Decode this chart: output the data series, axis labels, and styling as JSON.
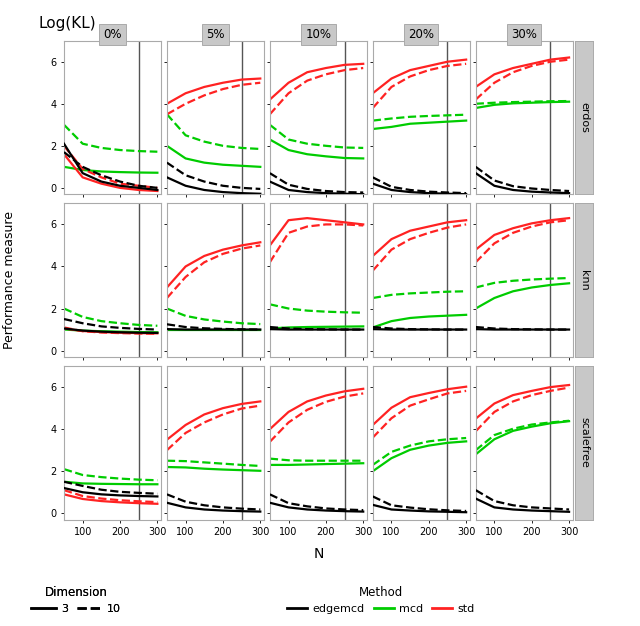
{
  "title": "Log(KL)",
  "xlabel": "N",
  "ylabel": "Performance measure",
  "col_labels": [
    "0%",
    "5%",
    "10%",
    "20%",
    "30%"
  ],
  "row_labels": [
    "erdos",
    "knn",
    "scalefree"
  ],
  "n_values": [
    50,
    100,
    150,
    200,
    250,
    300
  ],
  "vline_x": 250,
  "colors": {
    "edgemcd": "#000000",
    "mcd": "#00cc00",
    "std": "#ff2222"
  },
  "lw_solid": 1.6,
  "lw_dashed": 1.6,
  "ylim": [
    -0.3,
    7.0
  ],
  "yticks": [
    0,
    2,
    4,
    6
  ],
  "xticks": [
    100,
    200,
    300
  ],
  "data": {
    "erdos": {
      "0%": {
        "edgemcd_3": [
          2.1,
          0.7,
          0.3,
          0.1,
          0.0,
          -0.1
        ],
        "edgemcd_10": [
          1.7,
          1.0,
          0.6,
          0.3,
          0.1,
          0.0
        ],
        "mcd_3": [
          1.0,
          0.85,
          0.78,
          0.75,
          0.73,
          0.72
        ],
        "mcd_10": [
          3.0,
          2.1,
          1.9,
          1.8,
          1.75,
          1.72
        ],
        "std_3": [
          1.6,
          0.5,
          0.2,
          0.0,
          -0.1,
          -0.15
        ],
        "std_10": [
          2.0,
          0.9,
          0.5,
          0.2,
          0.1,
          0.0
        ]
      },
      "5%": {
        "edgemcd_3": [
          0.5,
          0.1,
          -0.1,
          -0.2,
          -0.25,
          -0.28
        ],
        "edgemcd_10": [
          1.2,
          0.6,
          0.3,
          0.1,
          0.0,
          -0.05
        ],
        "mcd_3": [
          2.0,
          1.4,
          1.2,
          1.1,
          1.05,
          1.0
        ],
        "mcd_10": [
          3.5,
          2.5,
          2.2,
          2.0,
          1.9,
          1.85
        ],
        "std_3": [
          4.0,
          4.5,
          4.8,
          5.0,
          5.15,
          5.2
        ],
        "std_10": [
          3.5,
          4.0,
          4.4,
          4.7,
          4.9,
          5.0
        ]
      },
      "10%": {
        "edgemcd_3": [
          0.3,
          -0.1,
          -0.2,
          -0.25,
          -0.28,
          -0.3
        ],
        "edgemcd_10": [
          0.7,
          0.15,
          -0.05,
          -0.15,
          -0.2,
          -0.22
        ],
        "mcd_3": [
          2.3,
          1.8,
          1.6,
          1.5,
          1.42,
          1.4
        ],
        "mcd_10": [
          3.0,
          2.3,
          2.1,
          2.0,
          1.92,
          1.9
        ],
        "std_3": [
          4.2,
          5.0,
          5.5,
          5.7,
          5.85,
          5.9
        ],
        "std_10": [
          3.5,
          4.5,
          5.1,
          5.4,
          5.6,
          5.7
        ]
      },
      "20%": {
        "edgemcd_3": [
          0.2,
          -0.1,
          -0.2,
          -0.25,
          -0.28,
          -0.3
        ],
        "edgemcd_10": [
          0.5,
          0.05,
          -0.1,
          -0.18,
          -0.22,
          -0.25
        ],
        "mcd_3": [
          2.8,
          2.9,
          3.05,
          3.1,
          3.15,
          3.2
        ],
        "mcd_10": [
          3.2,
          3.3,
          3.38,
          3.42,
          3.45,
          3.48
        ],
        "std_3": [
          4.5,
          5.2,
          5.6,
          5.8,
          6.0,
          6.1
        ],
        "std_10": [
          3.8,
          4.8,
          5.3,
          5.6,
          5.8,
          5.9
        ]
      },
      "30%": {
        "edgemcd_3": [
          0.7,
          0.1,
          -0.1,
          -0.18,
          -0.22,
          -0.25
        ],
        "edgemcd_10": [
          1.0,
          0.35,
          0.08,
          -0.03,
          -0.1,
          -0.15
        ],
        "mcd_3": [
          3.8,
          3.95,
          4.02,
          4.05,
          4.08,
          4.1
        ],
        "mcd_10": [
          4.0,
          4.05,
          4.08,
          4.1,
          4.12,
          4.13
        ],
        "std_3": [
          4.8,
          5.4,
          5.7,
          5.9,
          6.1,
          6.2
        ],
        "std_10": [
          4.2,
          5.0,
          5.5,
          5.8,
          6.0,
          6.1
        ]
      }
    },
    "knn": {
      "0%": {
        "edgemcd_3": [
          1.05,
          0.95,
          0.9,
          0.87,
          0.85,
          0.84
        ],
        "edgemcd_10": [
          1.5,
          1.3,
          1.15,
          1.08,
          1.03,
          1.0
        ],
        "mcd_3": [
          1.0,
          0.95,
          0.92,
          0.9,
          0.88,
          0.87
        ],
        "mcd_10": [
          2.0,
          1.6,
          1.4,
          1.3,
          1.22,
          1.18
        ],
        "std_3": [
          1.05,
          0.93,
          0.88,
          0.85,
          0.83,
          0.82
        ],
        "std_10": [
          1.1,
          0.92,
          0.86,
          0.83,
          0.81,
          0.8
        ]
      },
      "5%": {
        "edgemcd_3": [
          1.02,
          1.0,
          1.0,
          1.0,
          1.0,
          1.0
        ],
        "edgemcd_10": [
          1.25,
          1.12,
          1.06,
          1.03,
          1.01,
          1.0
        ],
        "mcd_3": [
          1.0,
          1.0,
          1.0,
          1.0,
          1.0,
          1.0
        ],
        "mcd_10": [
          2.0,
          1.65,
          1.48,
          1.38,
          1.3,
          1.26
        ],
        "std_3": [
          3.0,
          4.0,
          4.5,
          4.8,
          5.0,
          5.15
        ],
        "std_10": [
          2.5,
          3.5,
          4.2,
          4.6,
          4.85,
          5.0
        ]
      },
      "10%": {
        "edgemcd_3": [
          1.02,
          1.0,
          1.0,
          1.0,
          1.0,
          1.0
        ],
        "edgemcd_10": [
          1.12,
          1.05,
          1.02,
          1.01,
          1.0,
          1.0
        ],
        "mcd_3": [
          1.05,
          1.1,
          1.12,
          1.13,
          1.14,
          1.15
        ],
        "mcd_10": [
          2.2,
          2.0,
          1.9,
          1.85,
          1.82,
          1.8
        ],
        "std_3": [
          5.0,
          6.2,
          6.3,
          6.2,
          6.1,
          6.0
        ],
        "std_10": [
          4.2,
          5.6,
          5.9,
          6.0,
          6.0,
          5.95
        ]
      },
      "20%": {
        "edgemcd_3": [
          1.02,
          1.0,
          1.0,
          1.0,
          1.0,
          1.0
        ],
        "edgemcd_10": [
          1.12,
          1.05,
          1.02,
          1.01,
          1.0,
          1.0
        ],
        "mcd_3": [
          1.1,
          1.4,
          1.55,
          1.62,
          1.66,
          1.7
        ],
        "mcd_10": [
          2.5,
          2.65,
          2.72,
          2.76,
          2.8,
          2.82
        ],
        "std_3": [
          4.5,
          5.3,
          5.7,
          5.9,
          6.1,
          6.2
        ],
        "std_10": [
          3.8,
          4.8,
          5.3,
          5.6,
          5.85,
          6.0
        ]
      },
      "30%": {
        "edgemcd_3": [
          1.02,
          1.0,
          1.0,
          1.0,
          1.0,
          1.0
        ],
        "edgemcd_10": [
          1.12,
          1.05,
          1.02,
          1.01,
          1.0,
          1.0
        ],
        "mcd_3": [
          2.0,
          2.5,
          2.82,
          3.0,
          3.12,
          3.2
        ],
        "mcd_10": [
          3.0,
          3.22,
          3.32,
          3.38,
          3.42,
          3.45
        ],
        "std_3": [
          4.8,
          5.5,
          5.82,
          6.05,
          6.2,
          6.3
        ],
        "std_10": [
          4.2,
          5.1,
          5.6,
          5.9,
          6.1,
          6.2
        ]
      }
    },
    "scalefree": {
      "0%": {
        "edgemcd_3": [
          1.2,
          1.0,
          0.9,
          0.85,
          0.82,
          0.8
        ],
        "edgemcd_10": [
          1.5,
          1.3,
          1.12,
          1.02,
          0.97,
          0.93
        ],
        "mcd_3": [
          1.5,
          1.42,
          1.4,
          1.39,
          1.38,
          1.38
        ],
        "mcd_10": [
          2.1,
          1.82,
          1.72,
          1.65,
          1.6,
          1.57
        ],
        "std_3": [
          0.9,
          0.68,
          0.58,
          0.52,
          0.48,
          0.45
        ],
        "std_10": [
          1.1,
          0.82,
          0.7,
          0.62,
          0.57,
          0.53
        ]
      },
      "5%": {
        "edgemcd_3": [
          0.5,
          0.28,
          0.18,
          0.13,
          0.1,
          0.08
        ],
        "edgemcd_10": [
          0.9,
          0.55,
          0.38,
          0.28,
          0.22,
          0.18
        ],
        "mcd_3": [
          2.2,
          2.18,
          2.12,
          2.08,
          2.05,
          2.02
        ],
        "mcd_10": [
          2.5,
          2.48,
          2.42,
          2.36,
          2.3,
          2.25
        ],
        "std_3": [
          3.5,
          4.2,
          4.7,
          5.0,
          5.2,
          5.32
        ],
        "std_10": [
          3.0,
          3.82,
          4.32,
          4.7,
          4.98,
          5.12
        ]
      },
      "10%": {
        "edgemcd_3": [
          0.5,
          0.28,
          0.18,
          0.13,
          0.1,
          0.08
        ],
        "edgemcd_10": [
          0.9,
          0.48,
          0.33,
          0.23,
          0.18,
          0.15
        ],
        "mcd_3": [
          2.3,
          2.3,
          2.32,
          2.34,
          2.36,
          2.38
        ],
        "mcd_10": [
          2.6,
          2.52,
          2.5,
          2.5,
          2.5,
          2.5
        ],
        "std_3": [
          4.0,
          4.82,
          5.32,
          5.6,
          5.8,
          5.92
        ],
        "std_10": [
          3.4,
          4.32,
          4.92,
          5.3,
          5.55,
          5.7
        ]
      },
      "20%": {
        "edgemcd_3": [
          0.4,
          0.18,
          0.13,
          0.09,
          0.07,
          0.05
        ],
        "edgemcd_10": [
          0.8,
          0.38,
          0.27,
          0.19,
          0.14,
          0.11
        ],
        "mcd_3": [
          2.0,
          2.62,
          3.02,
          3.22,
          3.35,
          3.42
        ],
        "mcd_10": [
          2.3,
          2.92,
          3.22,
          3.42,
          3.52,
          3.58
        ],
        "std_3": [
          4.2,
          5.02,
          5.52,
          5.72,
          5.9,
          6.02
        ],
        "std_10": [
          3.6,
          4.52,
          5.12,
          5.42,
          5.7,
          5.82
        ]
      },
      "30%": {
        "edgemcd_3": [
          0.7,
          0.28,
          0.18,
          0.13,
          0.1,
          0.07
        ],
        "edgemcd_10": [
          1.1,
          0.58,
          0.38,
          0.28,
          0.23,
          0.18
        ],
        "mcd_3": [
          2.8,
          3.52,
          3.92,
          4.12,
          4.28,
          4.38
        ],
        "mcd_10": [
          3.0,
          3.72,
          4.02,
          4.22,
          4.32,
          4.4
        ],
        "std_3": [
          4.5,
          5.22,
          5.62,
          5.82,
          6.0,
          6.1
        ],
        "std_10": [
          3.9,
          4.82,
          5.32,
          5.62,
          5.82,
          5.98
        ]
      }
    }
  }
}
